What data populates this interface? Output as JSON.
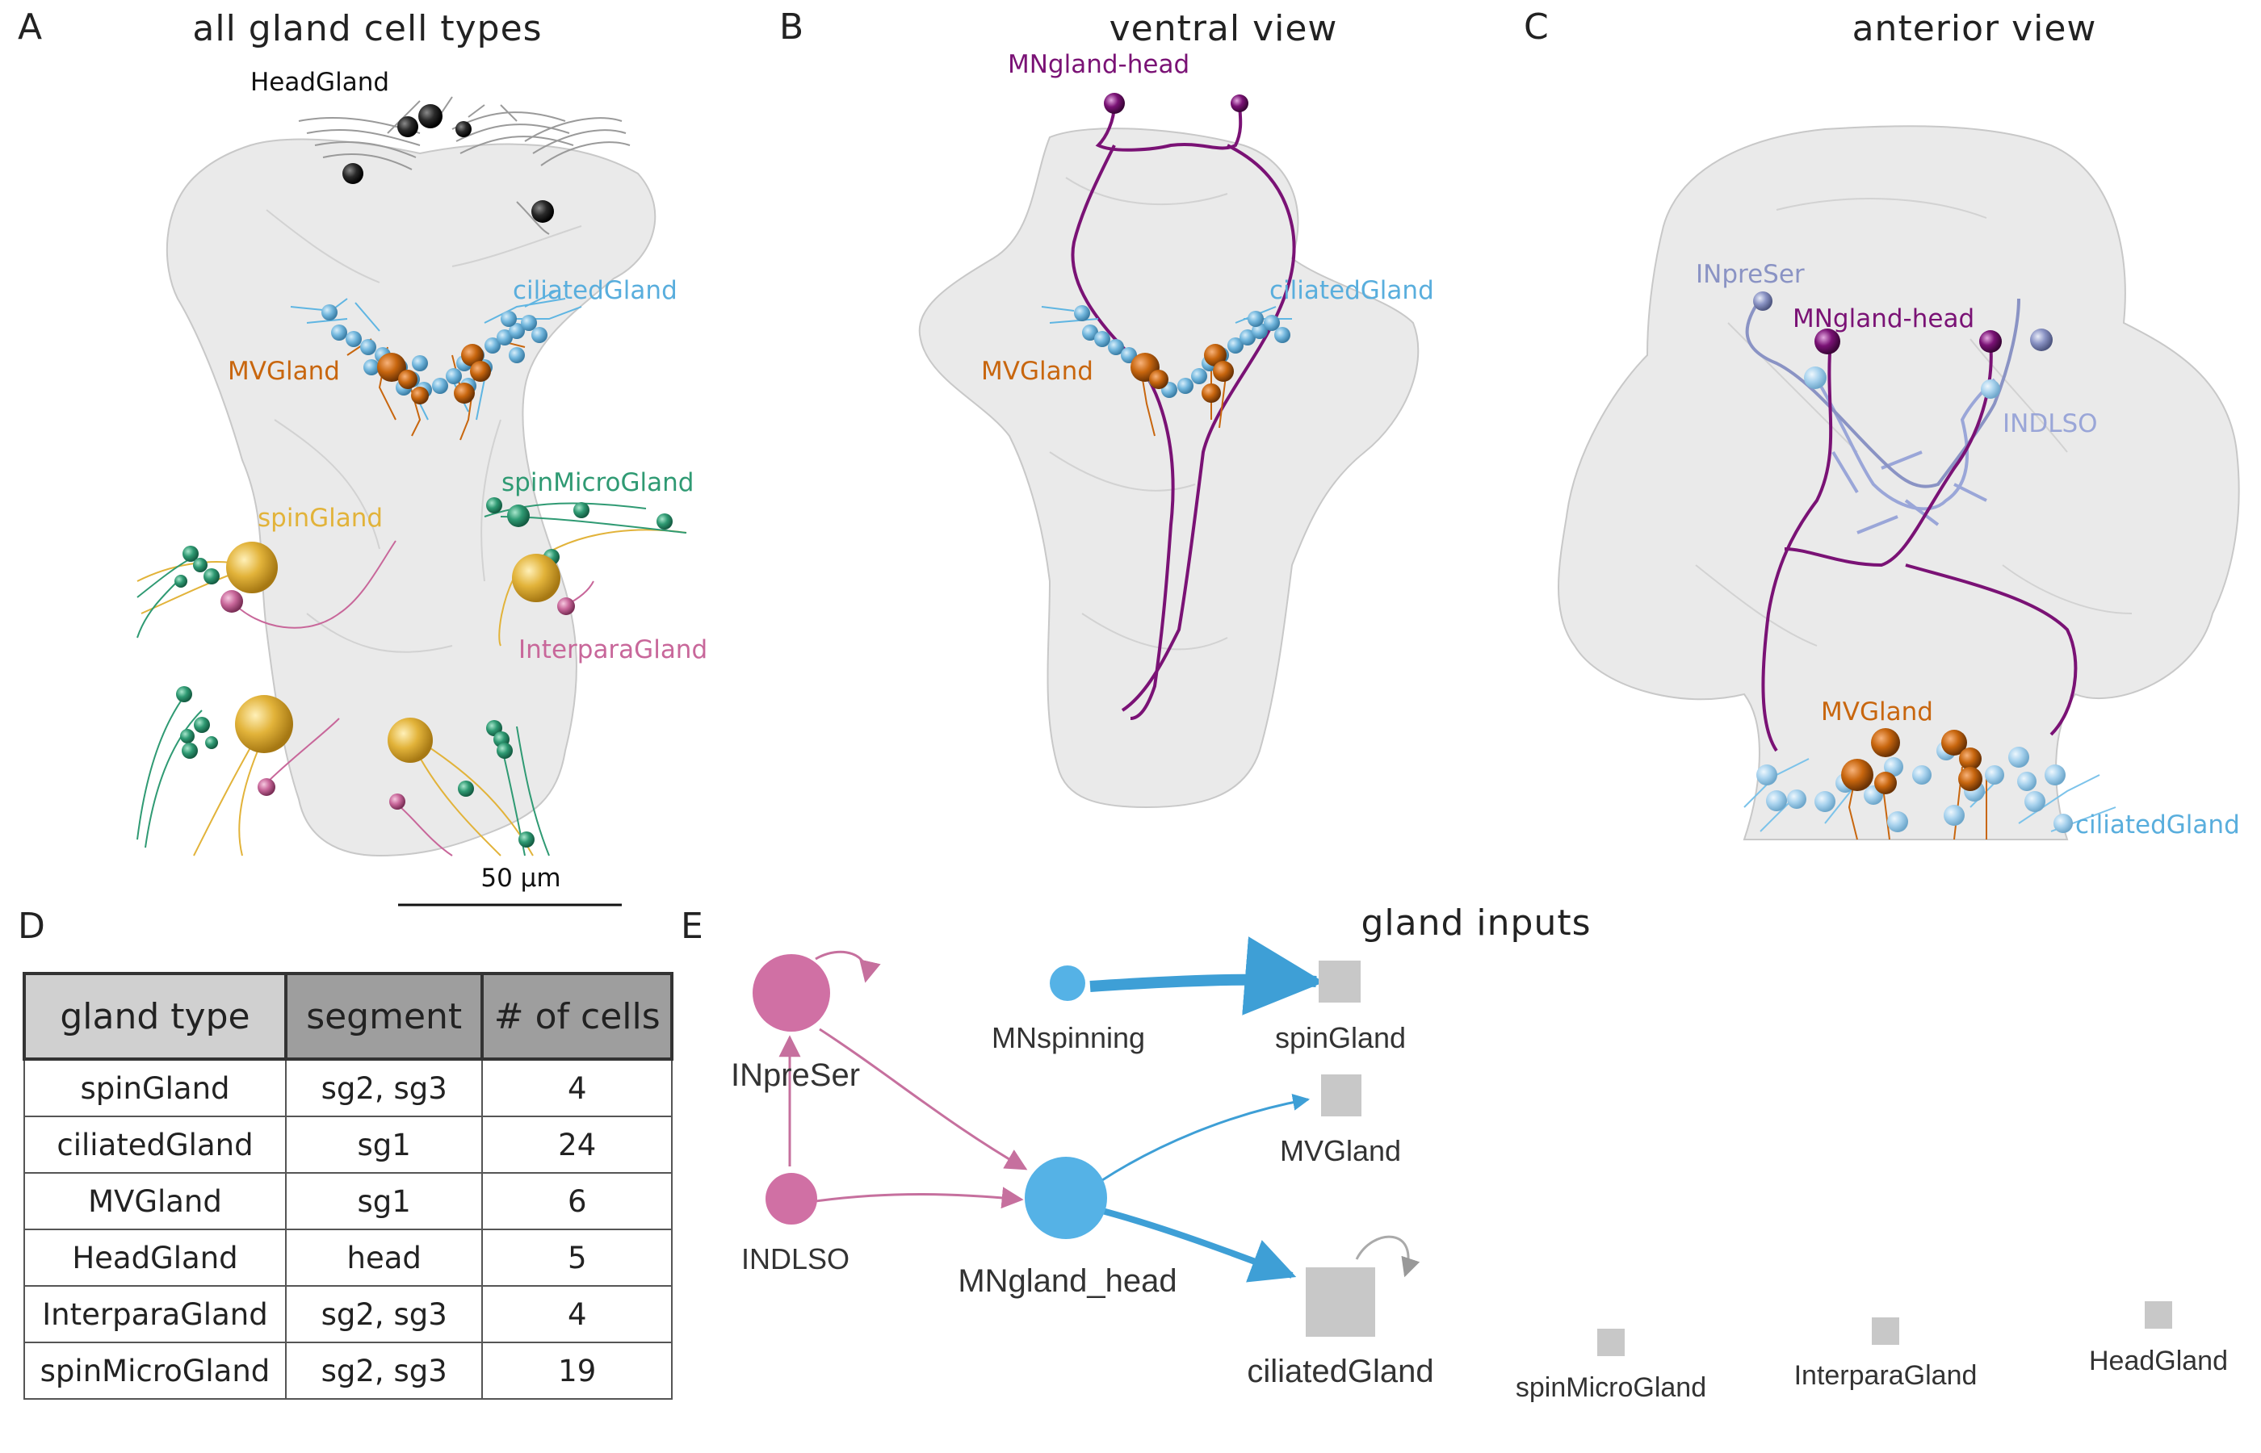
{
  "panels": {
    "A": {
      "letter": "A",
      "title": "all gland cell types",
      "labels": {
        "head": "HeadGland",
        "ciliated": "ciliatedGland",
        "mv": "MVGland",
        "spinmicro": "spinMicroGland",
        "spin": "spinGland",
        "interpara": "InterparaGland"
      },
      "scalebar": "50 µm"
    },
    "B": {
      "letter": "B",
      "title": "ventral view",
      "labels": {
        "mnhead": "MNgland-head",
        "ciliated": "ciliatedGland",
        "mv": "MVGland"
      }
    },
    "C": {
      "letter": "C",
      "title": "anterior view",
      "labels": {
        "inpreser": "INpreSer",
        "mnhead": "MNgland-head",
        "indlso": "INDLSO",
        "mv": "MVGland",
        "ciliated": "ciliatedGland"
      }
    },
    "D": {
      "letter": "D"
    },
    "E": {
      "letter": "E",
      "title": "gland inputs"
    }
  },
  "table": {
    "headers": [
      "gland type",
      "segment",
      "# of cells"
    ],
    "rows": [
      [
        "spinGland",
        "sg2, sg3",
        "4"
      ],
      [
        "ciliatedGland",
        "sg1",
        "24"
      ],
      [
        "MVGland",
        "sg1",
        "6"
      ],
      [
        "HeadGland",
        "head",
        "5"
      ],
      [
        "InterparaGland",
        "sg2, sg3",
        "4"
      ],
      [
        "spinMicroGland",
        "sg2, sg3",
        "19"
      ]
    ]
  },
  "network": {
    "nodes": {
      "INpreSer": "INpreSer",
      "INDLSO": "INDLSO",
      "MNspinning": "MNspinning",
      "MNgland_head": "MNgland_head",
      "spinGland": "spinGland",
      "MVGland": "MVGland",
      "ciliatedGland": "ciliatedGland",
      "spinMicroGland": "spinMicroGland",
      "InterparaGland": "InterparaGland",
      "HeadGland": "HeadGland"
    },
    "colors": {
      "interneuron": "#d070a4",
      "motorneuron": "#55b2e6",
      "gland": "#c8c8c8"
    }
  },
  "colors": {
    "mn_head": "#7a1275",
    "ciliated": "#59aedd",
    "mv": "#c8660e",
    "spinmicro": "#2f9a73",
    "spin": "#e2b33a",
    "interpara": "#c8679a",
    "inpreser": "#8a93c4",
    "indlso": "#9aa6d8"
  }
}
